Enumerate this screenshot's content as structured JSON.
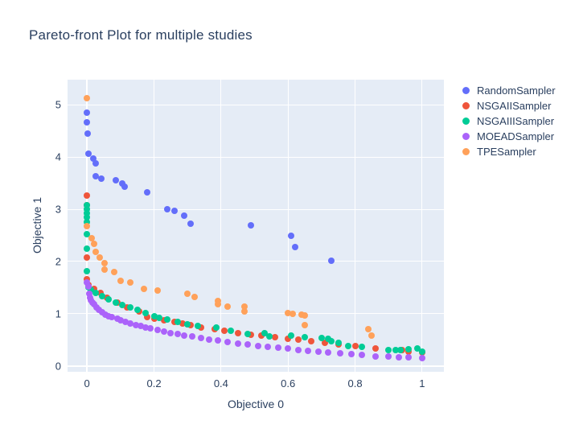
{
  "chart_data": {
    "type": "scatter",
    "title": "Pareto-front Plot for multiple studies",
    "xlabel": "Objective 0",
    "ylabel": "Objective 1",
    "xlim": [
      -0.058,
      1.065
    ],
    "ylim": [
      -0.11,
      5.48
    ],
    "grid": true,
    "plot_bg_color": "#e5ecf6",
    "grid_color": "#ffffff",
    "text_color": "#2a3f5f",
    "legend_position": "top-right",
    "x_ticks": [
      {
        "v": 0,
        "label": "0"
      },
      {
        "v": 0.2,
        "label": "0.2"
      },
      {
        "v": 0.4,
        "label": "0.4"
      },
      {
        "v": 0.6,
        "label": "0.6"
      },
      {
        "v": 0.8,
        "label": "0.8"
      },
      {
        "v": 1,
        "label": "1"
      }
    ],
    "y_ticks": [
      {
        "v": 0,
        "label": "0"
      },
      {
        "v": 1,
        "label": "1"
      },
      {
        "v": 2,
        "label": "2"
      },
      {
        "v": 3,
        "label": "3"
      },
      {
        "v": 4,
        "label": "4"
      },
      {
        "v": 5,
        "label": "5"
      }
    ],
    "series": [
      {
        "name": "RandomSampler",
        "color": "#636efa",
        "points": [
          [
            0,
            4.85
          ],
          [
            0,
            4.66
          ],
          [
            0.003,
            4.45
          ],
          [
            0.005,
            4.06
          ],
          [
            0.018,
            3.97
          ],
          [
            0.027,
            3.88
          ],
          [
            0.027,
            3.63
          ],
          [
            0.043,
            3.58
          ],
          [
            0.086,
            3.55
          ],
          [
            0.105,
            3.49
          ],
          [
            0.113,
            3.43
          ],
          [
            0.18,
            3.32
          ],
          [
            0.24,
            3.0
          ],
          [
            0.26,
            2.97
          ],
          [
            0.29,
            2.87
          ],
          [
            0.31,
            2.73
          ],
          [
            0.49,
            2.7
          ],
          [
            0.61,
            2.5
          ],
          [
            0.62,
            2.28
          ],
          [
            0.73,
            2.02
          ]
        ]
      },
      {
        "name": "NSGAIISampler",
        "color": "#ef553b",
        "points": [
          [
            0,
            3.26
          ],
          [
            0,
            3.08
          ],
          [
            0,
            2.08
          ],
          [
            0,
            1.66
          ],
          [
            0.005,
            1.56
          ],
          [
            0.02,
            1.48
          ],
          [
            0.04,
            1.4
          ],
          [
            0.06,
            1.3
          ],
          [
            0.09,
            1.22
          ],
          [
            0.12,
            1.12
          ],
          [
            0.155,
            1.04
          ],
          [
            0.18,
            0.94
          ],
          [
            0.2,
            0.9
          ],
          [
            0.23,
            0.87
          ],
          [
            0.26,
            0.85
          ],
          [
            0.285,
            0.82
          ],
          [
            0.31,
            0.78
          ],
          [
            0.34,
            0.74
          ],
          [
            0.38,
            0.7
          ],
          [
            0.41,
            0.67
          ],
          [
            0.45,
            0.63
          ],
          [
            0.49,
            0.6
          ],
          [
            0.52,
            0.58
          ],
          [
            0.56,
            0.55
          ],
          [
            0.6,
            0.52
          ],
          [
            0.63,
            0.5
          ],
          [
            0.67,
            0.47
          ],
          [
            0.71,
            0.44
          ],
          [
            0.75,
            0.42
          ],
          [
            0.8,
            0.38
          ],
          [
            0.86,
            0.34
          ],
          [
            0.94,
            0.31
          ],
          [
            0.96,
            0.28
          ],
          [
            1.0,
            0.26
          ]
        ]
      },
      {
        "name": "NSGAIIISampler",
        "color": "#00cc96",
        "points": [
          [
            0,
            3.08
          ],
          [
            0,
            3.0
          ],
          [
            0,
            2.92
          ],
          [
            0,
            2.84
          ],
          [
            0,
            2.76
          ],
          [
            0,
            2.52
          ],
          [
            0,
            2.24
          ],
          [
            0,
            1.82
          ],
          [
            0.004,
            1.5
          ],
          [
            0.012,
            1.46
          ],
          [
            0.025,
            1.4
          ],
          [
            0.045,
            1.33
          ],
          [
            0.065,
            1.28
          ],
          [
            0.085,
            1.22
          ],
          [
            0.105,
            1.17
          ],
          [
            0.13,
            1.12
          ],
          [
            0.15,
            1.08
          ],
          [
            0.175,
            1.02
          ],
          [
            0.2,
            0.95
          ],
          [
            0.215,
            0.92
          ],
          [
            0.24,
            0.89
          ],
          [
            0.27,
            0.84
          ],
          [
            0.3,
            0.8
          ],
          [
            0.33,
            0.77
          ],
          [
            0.385,
            0.73
          ],
          [
            0.43,
            0.67
          ],
          [
            0.48,
            0.61
          ],
          [
            0.53,
            0.63
          ],
          [
            0.545,
            0.56
          ],
          [
            0.61,
            0.58
          ],
          [
            0.65,
            0.55
          ],
          [
            0.7,
            0.53
          ],
          [
            0.72,
            0.52
          ],
          [
            0.73,
            0.48
          ],
          [
            0.75,
            0.45
          ],
          [
            0.78,
            0.38
          ],
          [
            0.82,
            0.36
          ],
          [
            0.9,
            0.3
          ],
          [
            0.92,
            0.3
          ],
          [
            0.935,
            0.3
          ],
          [
            0.96,
            0.32
          ],
          [
            0.985,
            0.33
          ],
          [
            1.0,
            0.28
          ]
        ]
      },
      {
        "name": "MOEADSampler",
        "color": "#ab63fa",
        "points": [
          [
            0,
            1.6
          ],
          [
            0.004,
            1.52
          ],
          [
            0.006,
            1.38
          ],
          [
            0.008,
            1.3
          ],
          [
            0.012,
            1.26
          ],
          [
            0.016,
            1.22
          ],
          [
            0.02,
            1.18
          ],
          [
            0.028,
            1.12
          ],
          [
            0.036,
            1.07
          ],
          [
            0.045,
            1.03
          ],
          [
            0.055,
            0.99
          ],
          [
            0.065,
            0.96
          ],
          [
            0.075,
            0.93
          ],
          [
            0.09,
            0.9
          ],
          [
            0.1,
            0.87
          ],
          [
            0.115,
            0.84
          ],
          [
            0.13,
            0.81
          ],
          [
            0.145,
            0.79
          ],
          [
            0.16,
            0.77
          ],
          [
            0.175,
            0.74
          ],
          [
            0.19,
            0.72
          ],
          [
            0.21,
            0.69
          ],
          [
            0.23,
            0.66
          ],
          [
            0.25,
            0.63
          ],
          [
            0.27,
            0.61
          ],
          [
            0.29,
            0.59
          ],
          [
            0.315,
            0.56
          ],
          [
            0.34,
            0.54
          ],
          [
            0.365,
            0.51
          ],
          [
            0.39,
            0.49
          ],
          [
            0.42,
            0.46
          ],
          [
            0.45,
            0.43
          ],
          [
            0.48,
            0.41
          ],
          [
            0.51,
            0.39
          ],
          [
            0.54,
            0.37
          ],
          [
            0.57,
            0.35
          ],
          [
            0.6,
            0.33
          ],
          [
            0.63,
            0.31
          ],
          [
            0.66,
            0.29
          ],
          [
            0.69,
            0.27
          ],
          [
            0.72,
            0.26
          ],
          [
            0.755,
            0.25
          ],
          [
            0.79,
            0.23
          ],
          [
            0.82,
            0.21
          ],
          [
            0.86,
            0.19
          ],
          [
            0.9,
            0.18
          ],
          [
            0.93,
            0.17
          ],
          [
            0.96,
            0.16
          ],
          [
            1.0,
            0.15
          ]
        ]
      },
      {
        "name": "TPESampler",
        "color": "#ffa15a",
        "points": [
          [
            0,
            5.12
          ],
          [
            0,
            2.68
          ],
          [
            0.013,
            2.45
          ],
          [
            0.02,
            2.34
          ],
          [
            0.026,
            2.18
          ],
          [
            0.037,
            2.08
          ],
          [
            0.052,
            1.97
          ],
          [
            0.052,
            1.85
          ],
          [
            0.082,
            1.8
          ],
          [
            0.1,
            1.63
          ],
          [
            0.13,
            1.6
          ],
          [
            0.17,
            1.48
          ],
          [
            0.21,
            1.44
          ],
          [
            0.3,
            1.38
          ],
          [
            0.32,
            1.32
          ],
          [
            0.39,
            1.25
          ],
          [
            0.39,
            1.18
          ],
          [
            0.42,
            1.13
          ],
          [
            0.47,
            1.13
          ],
          [
            0.47,
            1.04
          ],
          [
            0.6,
            1.01
          ],
          [
            0.615,
            1.0
          ],
          [
            0.64,
            0.99
          ],
          [
            0.65,
            0.97
          ],
          [
            0.65,
            0.79
          ],
          [
            0.84,
            0.7
          ],
          [
            0.85,
            0.58
          ]
        ]
      }
    ]
  }
}
